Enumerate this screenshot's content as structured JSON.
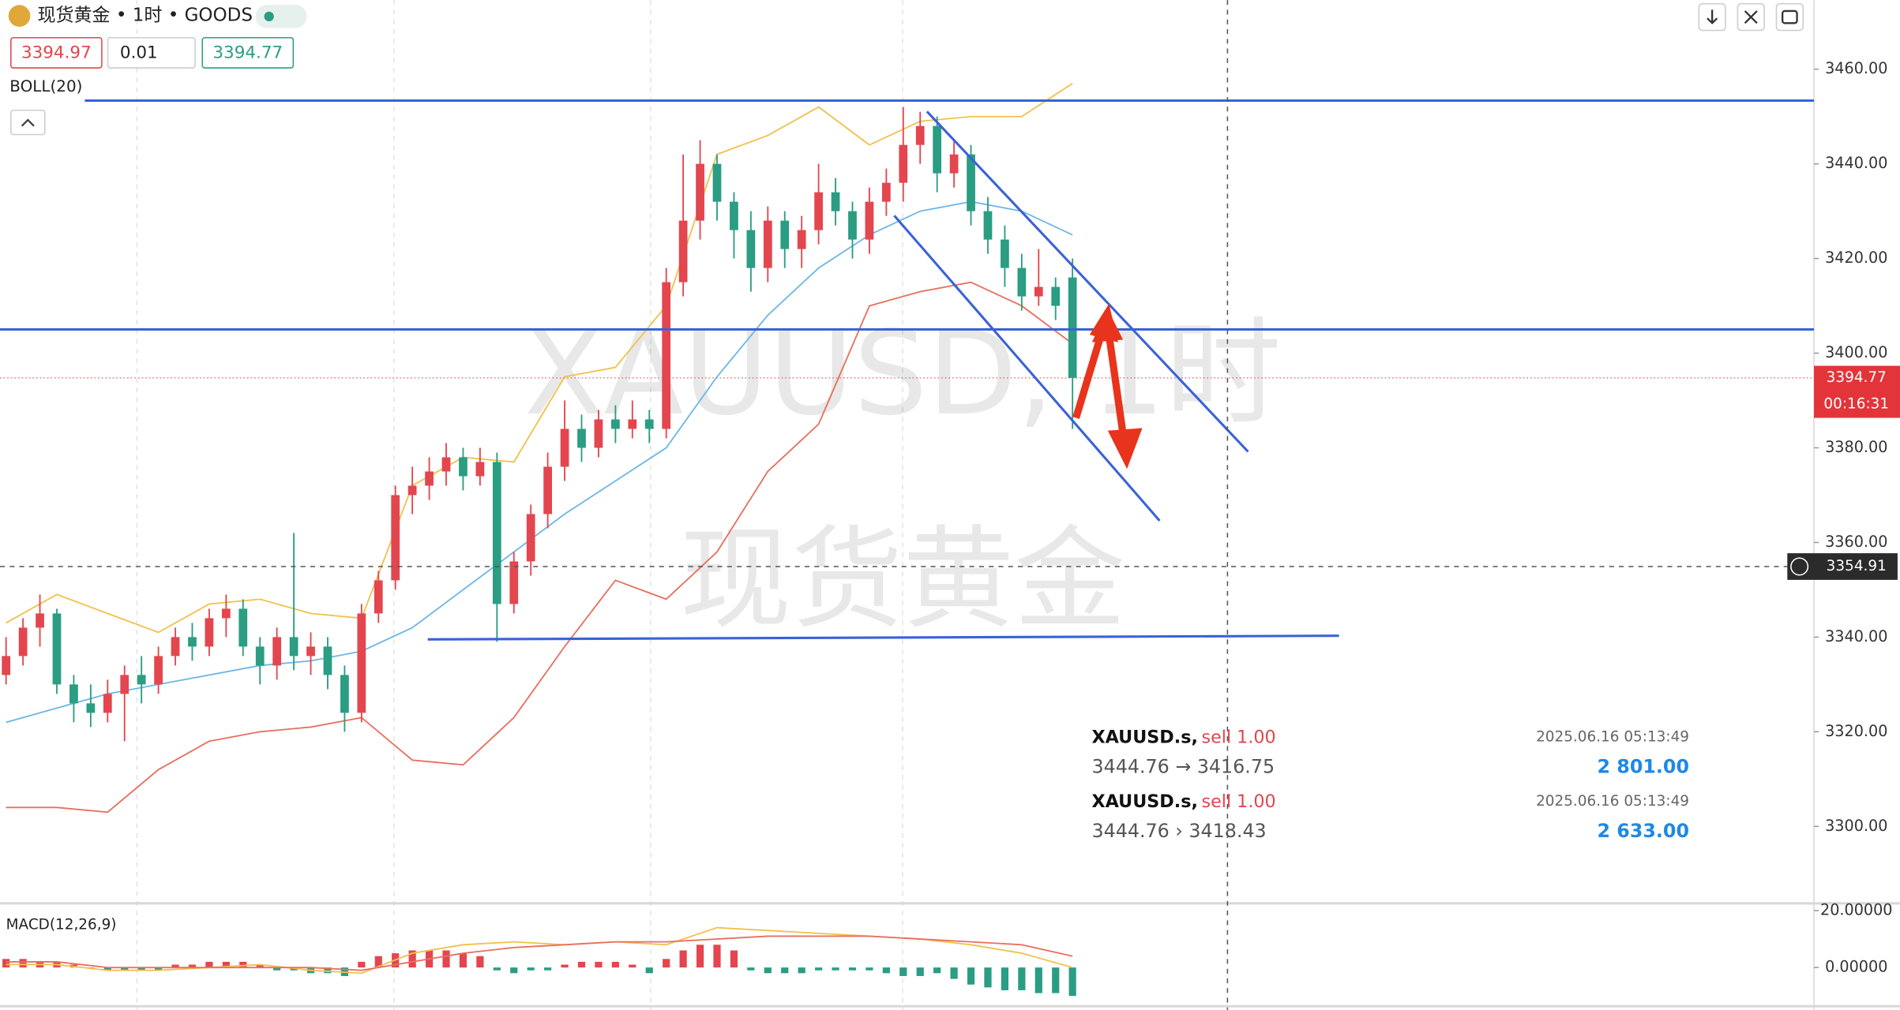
{
  "toolbar": {
    "bid": 3394.97,
    "lot": 0.01,
    "ask": 3394.77
  },
  "trades": [
    {
      "symbol": "XAUUSD.s,",
      "side": "sell 1.00",
      "time": "2025.06.16 05:13:49",
      "prices": "3444.76 → 3416.75",
      "profit": "2 801.00"
    },
    {
      "symbol": "XAUUSD.s,",
      "side": "sell 1.00",
      "time": "2025.06.16 05:13:49",
      "prices": "3444.76 › 3418.43",
      "profit": "2 633.00"
    }
  ],
  "chart_data": [
    {
      "type": "candlestick",
      "title": "现货黄金 • 1时 • GOODS",
      "indicator": "BOLL(20)",
      "watermark": [
        "XAUUSD, 1时",
        "现货黄金"
      ],
      "up_color": "#e3464e",
      "down_color": "#2a9d83",
      "ohlc": [
        [
          3332,
          3340,
          3330,
          3336
        ],
        [
          3336,
          3344,
          3334,
          3342
        ],
        [
          3342,
          3349,
          3338,
          3345
        ],
        [
          3345,
          3346,
          3328,
          3330
        ],
        [
          3330,
          3332,
          3322,
          3326
        ],
        [
          3326,
          3330,
          3321,
          3324
        ],
        [
          3324,
          3331,
          3322,
          3328
        ],
        [
          3328,
          3334,
          3318,
          3332
        ],
        [
          3332,
          3336,
          3326,
          3330
        ],
        [
          3330,
          3338,
          3328,
          3336
        ],
        [
          3336,
          3342,
          3334,
          3340
        ],
        [
          3340,
          3343,
          3335,
          3338
        ],
        [
          3338,
          3346,
          3336,
          3344
        ],
        [
          3344,
          3349,
          3340,
          3346
        ],
        [
          3346,
          3348,
          3336,
          3338
        ],
        [
          3338,
          3340,
          3330,
          3334
        ],
        [
          3334,
          3342,
          3331,
          3340
        ],
        [
          3340,
          3362,
          3333,
          3336
        ],
        [
          3336,
          3341,
          3332,
          3338
        ],
        [
          3338,
          3340,
          3329,
          3332
        ],
        [
          3332,
          3334,
          3320,
          3324
        ],
        [
          3324,
          3347,
          3322,
          3345
        ],
        [
          3345,
          3354,
          3343,
          3352
        ],
        [
          3352,
          3372,
          3350,
          3370
        ],
        [
          3370,
          3376,
          3366,
          3372
        ],
        [
          3372,
          3378,
          3369,
          3375
        ],
        [
          3375,
          3381,
          3372,
          3378
        ],
        [
          3378,
          3380,
          3371,
          3374
        ],
        [
          3374,
          3380,
          3372,
          3377
        ],
        [
          3377,
          3379,
          3339,
          3347
        ],
        [
          3347,
          3358,
          3345,
          3356
        ],
        [
          3356,
          3368,
          3353,
          3366
        ],
        [
          3366,
          3379,
          3363,
          3376
        ],
        [
          3376,
          3390,
          3373,
          3384
        ],
        [
          3384,
          3387,
          3377,
          3380
        ],
        [
          3380,
          3388,
          3378,
          3386
        ],
        [
          3386,
          3389,
          3381,
          3384
        ],
        [
          3384,
          3390,
          3382,
          3386
        ],
        [
          3386,
          3388,
          3381,
          3384
        ],
        [
          3384,
          3418,
          3382,
          3415
        ],
        [
          3415,
          3442,
          3412,
          3428
        ],
        [
          3428,
          3445,
          3424,
          3440
        ],
        [
          3440,
          3442,
          3428,
          3432
        ],
        [
          3432,
          3434,
          3420,
          3426
        ],
        [
          3426,
          3430,
          3413,
          3418
        ],
        [
          3418,
          3431,
          3415,
          3428
        ],
        [
          3428,
          3430,
          3418,
          3422
        ],
        [
          3422,
          3429,
          3418,
          3426
        ],
        [
          3426,
          3440,
          3423,
          3434
        ],
        [
          3434,
          3437,
          3427,
          3430
        ],
        [
          3430,
          3432,
          3420,
          3424
        ],
        [
          3424,
          3435,
          3421,
          3432
        ],
        [
          3432,
          3439,
          3429,
          3436
        ],
        [
          3436,
          3452,
          3432,
          3444
        ],
        [
          3444,
          3451,
          3440,
          3448
        ],
        [
          3448,
          3450,
          3434,
          3438
        ],
        [
          3438,
          3445,
          3435,
          3442
        ],
        [
          3442,
          3444,
          3427,
          3430
        ],
        [
          3430,
          3433,
          3421,
          3424
        ],
        [
          3424,
          3427,
          3414,
          3418
        ],
        [
          3418,
          3421,
          3409,
          3412
        ],
        [
          3412,
          3422,
          3410,
          3414
        ],
        [
          3414,
          3416,
          3407,
          3410
        ],
        [
          3416,
          3420,
          3384,
          3394.77
        ]
      ],
      "overlay": {
        "x": [
          0,
          3,
          6,
          9,
          12,
          15,
          18,
          21,
          24,
          27,
          30,
          33,
          36,
          39,
          42,
          45,
          48,
          51,
          54,
          57,
          60,
          63
        ],
        "series": [
          {
            "color": "#f2c14e",
            "values": [
              3343,
              3349,
              3345,
              3341,
              3347,
              3348,
              3345,
              3344,
              3372,
              3378,
              3377,
              3395,
              3397,
              3410,
              3442,
              3446,
              3452,
              3444,
              3449,
              3450,
              3450,
              3457
            ]
          },
          {
            "color": "#6fb7e6",
            "values": [
              3322,
              3325,
              3328,
              3330,
              3332,
              3334,
              3335,
              3337,
              3342,
              3350,
              3358,
              3366,
              3373,
              3380,
              3395,
              3408,
              3418,
              3425,
              3430,
              3432,
              3430,
              3425
            ]
          },
          {
            "color": "#e8705f",
            "values": [
              3304,
              3304,
              3303,
              3312,
              3318,
              3320,
              3321,
              3323,
              3314,
              3313,
              3323,
              3338,
              3352,
              3348,
              3358,
              3375,
              3385,
              3410,
              3413,
              3415,
              3410,
              3402
            ]
          }
        ]
      },
      "last_price": 3394.77,
      "countdown": "00:16:31",
      "crosshair_price": 3354.91,
      "ylim": [
        3284,
        3474.6
      ],
      "yticks": [
        {
          "value": 3460,
          "label": "3460.00"
        },
        {
          "value": 3440,
          "label": "3440.00"
        },
        {
          "value": 3420,
          "label": "3420.00"
        },
        {
          "value": 3400,
          "label": "3400.00"
        },
        {
          "value": 3380,
          "label": "3380.00"
        },
        {
          "value": 3360,
          "label": "3360.00"
        },
        {
          "value": 3340,
          "label": "3340.00"
        },
        {
          "value": 3320,
          "label": "3320.00"
        },
        {
          "value": 3300,
          "label": "3300.00"
        }
      ]
    },
    {
      "type": "macd",
      "title": "MACD(12,26,9)",
      "histogram": [
        3,
        3,
        2,
        2,
        1,
        0,
        -1,
        -1,
        -1,
        -1,
        1,
        1,
        2,
        2,
        2,
        1,
        -1,
        -1,
        -2,
        -2,
        -3,
        2,
        4,
        5,
        6,
        6,
        6,
        5,
        4,
        -1,
        -2,
        -1,
        -1,
        1,
        2,
        2,
        2,
        1,
        -2,
        3,
        6,
        8,
        8,
        6,
        -1,
        -2,
        -2,
        -2,
        -1,
        -1,
        -1,
        -1,
        -2,
        -3,
        -3,
        -2,
        -4,
        -6,
        -7,
        -8,
        -8,
        -9,
        -9,
        -10
      ],
      "up_color": "#e3464e",
      "down_color": "#2a9d83",
      "x": [
        0,
        3,
        6,
        9,
        12,
        15,
        18,
        21,
        24,
        27,
        30,
        33,
        36,
        39,
        42,
        45,
        48,
        51,
        54,
        57,
        60,
        63
      ],
      "series": [
        {
          "color": "#f2c14e",
          "values": [
            1,
            1,
            -1,
            -1,
            0,
            1,
            -1,
            -2,
            5,
            8,
            9,
            8,
            9,
            8,
            14,
            13,
            12,
            11,
            10,
            8,
            5,
            0
          ]
        },
        {
          "color": "#e8705f",
          "values": [
            2,
            2,
            0,
            0,
            0,
            0,
            0,
            -1,
            2,
            5,
            7,
            8,
            9,
            9,
            10,
            11,
            11,
            11,
            10,
            9,
            8,
            4
          ]
        }
      ],
      "ylim": [
        -13.2,
        21.7
      ],
      "yticks": [
        {
          "value": 20,
          "label": "20.00000"
        },
        {
          "value": 0,
          "label": "0.00000"
        }
      ]
    }
  ]
}
